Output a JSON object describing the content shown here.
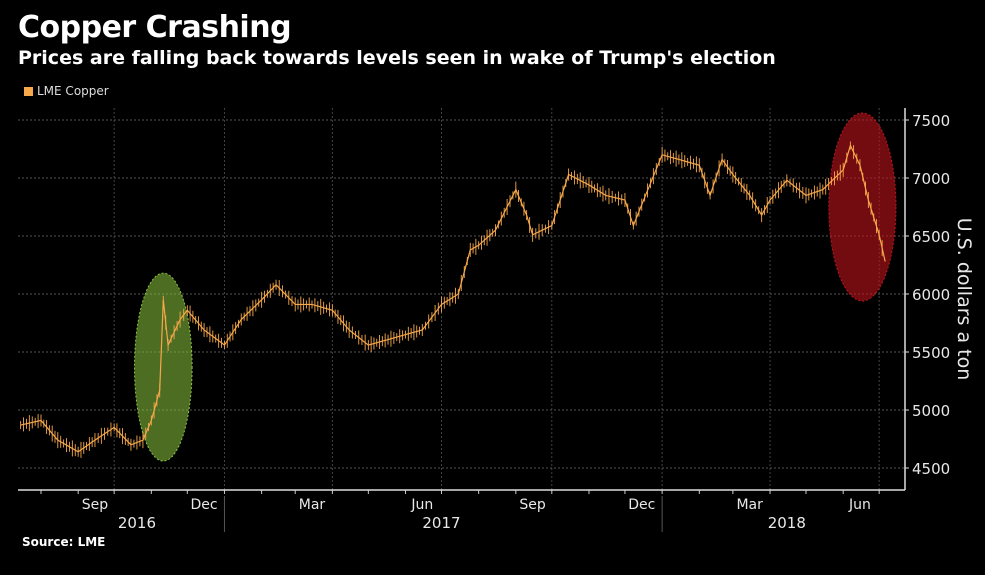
{
  "chart_data": {
    "type": "line",
    "title": "Copper Crashing",
    "subtitle": "Prices are falling back towards levels seen in wake of Trump's election",
    "ylabel": "U.S. dollars a ton",
    "ylim": [
      4310,
      7600
    ],
    "yticks": [
      4500,
      5000,
      5500,
      6000,
      6500,
      7000,
      7500
    ],
    "xticks": [
      {
        "label": "Sep",
        "date": "2016-09-15"
      },
      {
        "label": "Dec",
        "date": "2016-12-15"
      },
      {
        "label": "Mar",
        "date": "2017-03-15"
      },
      {
        "label": "Jun",
        "date": "2017-06-15"
      },
      {
        "label": "Sep",
        "date": "2017-09-15"
      },
      {
        "label": "Dec",
        "date": "2017-12-15"
      },
      {
        "label": "Mar",
        "date": "2018-03-15"
      },
      {
        "label": "Jun",
        "date": "2018-06-15"
      }
    ],
    "years": [
      {
        "label": "2016",
        "date": "2016-10-20"
      },
      {
        "label": "2017",
        "date": "2017-07-01"
      },
      {
        "label": "2018",
        "date": "2018-04-15"
      }
    ],
    "grid": true,
    "legend_position": "top-left",
    "series": [
      {
        "name": "LME Copper",
        "color": "#f7a84a",
        "x": [
          "2016-07-15",
          "2016-08-01",
          "2016-08-15",
          "2016-09-01",
          "2016-09-15",
          "2016-10-01",
          "2016-10-15",
          "2016-10-25",
          "2016-11-01",
          "2016-11-08",
          "2016-11-11",
          "2016-11-15",
          "2016-11-25",
          "2016-12-01",
          "2016-12-15",
          "2017-01-01",
          "2017-01-15",
          "2017-02-01",
          "2017-02-13",
          "2017-03-01",
          "2017-03-15",
          "2017-04-01",
          "2017-04-15",
          "2017-05-01",
          "2017-05-15",
          "2017-06-01",
          "2017-06-15",
          "2017-07-01",
          "2017-07-15",
          "2017-07-25",
          "2017-08-01",
          "2017-08-15",
          "2017-09-01",
          "2017-09-10",
          "2017-09-15",
          "2017-10-01",
          "2017-10-15",
          "2017-11-01",
          "2017-11-15",
          "2017-12-01",
          "2017-12-08",
          "2017-12-15",
          "2018-01-01",
          "2018-01-15",
          "2018-02-01",
          "2018-02-10",
          "2018-02-20",
          "2018-03-01",
          "2018-03-15",
          "2018-03-25",
          "2018-04-01",
          "2018-04-15",
          "2018-05-01",
          "2018-05-15",
          "2018-06-01",
          "2018-06-07",
          "2018-06-15",
          "2018-06-22",
          "2018-07-01",
          "2018-07-06"
        ],
        "values": [
          4870,
          4910,
          4740,
          4640,
          4740,
          4850,
          4700,
          4740,
          4910,
          5170,
          5950,
          5560,
          5780,
          5860,
          5690,
          5560,
          5780,
          5950,
          6080,
          5910,
          5910,
          5860,
          5690,
          5560,
          5600,
          5650,
          5690,
          5910,
          6000,
          6380,
          6420,
          6550,
          6900,
          6680,
          6510,
          6590,
          7030,
          6940,
          6850,
          6810,
          6590,
          6770,
          7200,
          7160,
          7110,
          6850,
          7160,
          7030,
          6850,
          6680,
          6810,
          6980,
          6850,
          6900,
          7070,
          7280,
          7110,
          6810,
          6510,
          6280
        ]
      }
    ],
    "annotations": [
      {
        "shape": "ellipse",
        "color": "#8dc63f",
        "from": "2016-10-18",
        "to": "2016-12-05",
        "ymin": 4560,
        "ymax": 6180
      },
      {
        "shape": "ellipse",
        "color": "#c0141c",
        "from": "2018-05-20",
        "to": "2018-07-15",
        "ymin": 5940,
        "ymax": 7560
      }
    ],
    "source": "Source: LME"
  }
}
